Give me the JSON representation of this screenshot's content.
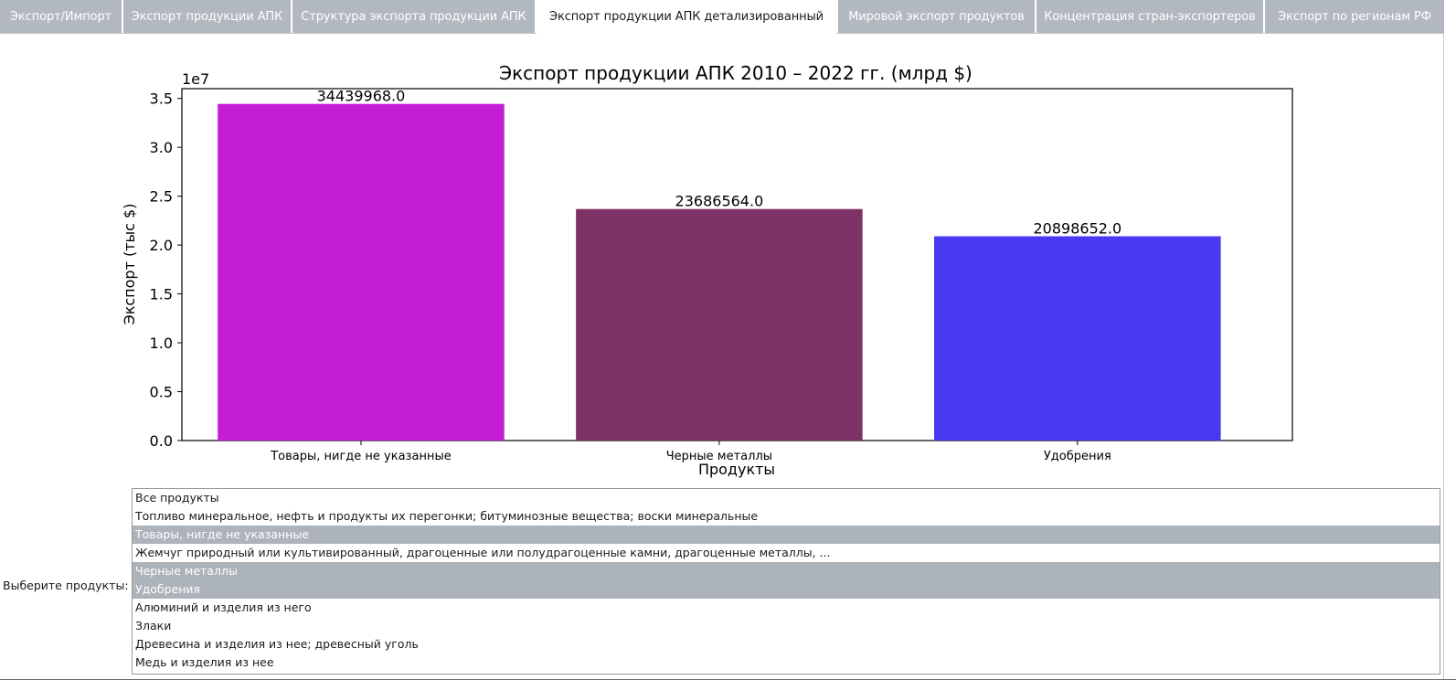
{
  "tabs": [
    {
      "label": "Экспорт/Импорт",
      "active": false
    },
    {
      "label": "Экспорт продукции АПК",
      "active": false
    },
    {
      "label": "Структура экспорта продукции АПК",
      "active": false
    },
    {
      "label": "Экспорт продукции АПК детализированный",
      "active": true
    },
    {
      "label": "Мировой экспорт продуктов",
      "active": false
    },
    {
      "label": "Концентрация стран-экспортеров",
      "active": false
    },
    {
      "label": "Экспорт по регионам РФ",
      "active": false
    }
  ],
  "chart_data": {
    "type": "bar",
    "title": "Экспорт продукции АПК 2010 – 2022 гг. (млрд $)",
    "xlabel": "Продукты",
    "ylabel": "Экспорт (тыс $)",
    "y_offset_label": "1e7",
    "categories": [
      "Товары, нигде не указанные",
      "Черные металлы",
      "Удобрения"
    ],
    "values": [
      34439968.0,
      23686564.0,
      20898652.0
    ],
    "value_labels": [
      "34439968.0",
      "23686564.0",
      "20898652.0"
    ],
    "colors": [
      "#c41ed4",
      "#7d3365",
      "#4839f0"
    ],
    "ylim": [
      0,
      36000000
    ],
    "yticks": [
      0,
      5000000,
      10000000,
      15000000,
      20000000,
      25000000,
      30000000,
      35000000
    ],
    "ytick_labels": [
      "0.0",
      "0.5",
      "1.0",
      "1.5",
      "2.0",
      "2.5",
      "3.0",
      "3.5"
    ],
    "grid": false,
    "legend": "none"
  },
  "selector": {
    "label": "Выберите продукты:",
    "items": [
      {
        "label": "Все продукты",
        "selected": false
      },
      {
        "label": "Топливо минеральное, нефть и продукты их перегонки; битуминозные вещества; воски минеральные",
        "selected": false
      },
      {
        "label": "Товары, нигде не указанные",
        "selected": true
      },
      {
        "label": "Жемчуг природный или культивированный, драгоценные или полудрагоценные камни, драгоценные металлы, ...",
        "selected": false
      },
      {
        "label": "Черные металлы",
        "selected": true
      },
      {
        "label": "Удобрения",
        "selected": true
      },
      {
        "label": "Алюминий и изделия из него",
        "selected": false
      },
      {
        "label": "Злаки",
        "selected": false
      },
      {
        "label": "Древесина и изделия из нее; древесный уголь",
        "selected": false
      },
      {
        "label": "Медь и изделия из нее",
        "selected": false
      }
    ]
  }
}
